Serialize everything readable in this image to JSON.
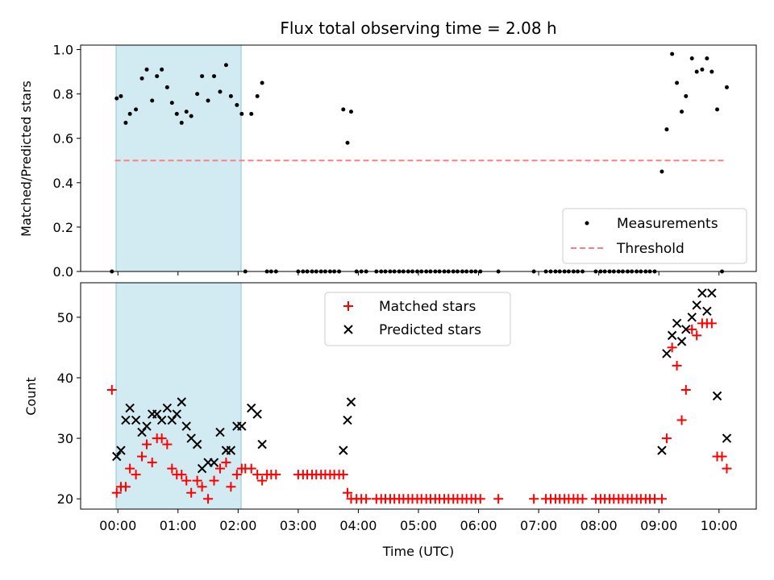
{
  "chart_data": [
    {
      "type": "scatter",
      "title": "Flux total observing time = 2.08 h",
      "ylabel": "Matched/Predicted stars",
      "xlabel": "",
      "xlim": [
        -0.62,
        10.62
      ],
      "ylim": [
        0,
        1.02
      ],
      "yticks": [
        0.0,
        0.2,
        0.4,
        0.6,
        0.8,
        1.0
      ],
      "ytick_labels": [
        "0.0",
        "0.2",
        "0.4",
        "0.6",
        "0.8",
        "1.0"
      ],
      "highlight_span": [
        -0.03,
        2.05
      ],
      "highlight_color": "#add8e6",
      "threshold": {
        "value": 0.5,
        "x_range": [
          -0.05,
          10.1
        ],
        "color": "#ff7f7f"
      },
      "legend": {
        "position": "lower-right",
        "entries": [
          "Measurements",
          "Threshold"
        ]
      },
      "series": [
        {
          "name": "Measurements",
          "color": "#000000",
          "x": [
            -0.1,
            -0.02,
            0.05,
            0.13,
            0.2,
            0.3,
            0.4,
            0.48,
            0.57,
            0.65,
            0.73,
            0.82,
            0.9,
            0.98,
            1.06,
            1.14,
            1.22,
            1.32,
            1.4,
            1.5,
            1.6,
            1.7,
            1.8,
            1.88,
            1.98,
            2.06,
            2.12,
            2.22,
            2.32,
            2.4,
            2.48,
            2.55,
            2.63,
            3.0,
            3.08,
            3.15,
            3.23,
            3.3,
            3.38,
            3.45,
            3.53,
            3.6,
            3.68,
            3.75,
            3.82,
            3.88,
            3.97,
            4.05,
            4.13,
            4.3,
            4.38,
            4.45,
            4.53,
            4.6,
            4.68,
            4.75,
            4.83,
            4.9,
            4.98,
            5.05,
            5.13,
            5.2,
            5.28,
            5.35,
            5.43,
            5.5,
            5.58,
            5.65,
            5.73,
            5.8,
            5.88,
            5.95,
            6.03,
            6.33,
            6.92,
            7.12,
            7.2,
            7.28,
            7.35,
            7.43,
            7.5,
            7.58,
            7.65,
            7.73,
            7.95,
            8.03,
            8.1,
            8.18,
            8.25,
            8.33,
            8.4,
            8.48,
            8.55,
            8.63,
            8.7,
            8.78,
            8.85,
            8.93,
            9.05,
            9.13,
            9.22,
            9.3,
            9.38,
            9.45,
            9.55,
            9.63,
            9.72,
            9.8,
            9.88,
            9.97,
            10.05,
            10.13
          ],
          "y": [
            0.0,
            0.78,
            0.79,
            0.67,
            0.71,
            0.73,
            0.87,
            0.91,
            0.77,
            0.88,
            0.91,
            0.83,
            0.76,
            0.71,
            0.67,
            0.72,
            0.7,
            0.8,
            0.88,
            0.77,
            0.88,
            0.81,
            0.93,
            0.79,
            0.75,
            0.71,
            0.0,
            0.71,
            0.79,
            0.85,
            0.0,
            0.0,
            0.0,
            0.0,
            0.0,
            0.0,
            0.0,
            0.0,
            0.0,
            0.0,
            0.0,
            0.0,
            0.0,
            0.73,
            0.58,
            0.72,
            0.0,
            0.0,
            0.0,
            0.0,
            0.0,
            0.0,
            0.0,
            0.0,
            0.0,
            0.0,
            0.0,
            0.0,
            0.0,
            0.0,
            0.0,
            0.0,
            0.0,
            0.0,
            0.0,
            0.0,
            0.0,
            0.0,
            0.0,
            0.0,
            0.0,
            0.0,
            0.0,
            0.0,
            0.0,
            0.0,
            0.0,
            0.0,
            0.0,
            0.0,
            0.0,
            0.0,
            0.0,
            0.0,
            0.0,
            0.0,
            0.0,
            0.0,
            0.0,
            0.0,
            0.0,
            0.0,
            0.0,
            0.0,
            0.0,
            0.0,
            0.0,
            0.0,
            0.45,
            0.64,
            0.98,
            0.85,
            0.72,
            0.79,
            0.96,
            0.9,
            0.91,
            0.96,
            0.9,
            0.73,
            0.0,
            0.83
          ]
        }
      ]
    },
    {
      "type": "scatter",
      "title": "",
      "ylabel": "Count",
      "xlabel": "Time (UTC)",
      "xlim": [
        -0.62,
        10.62
      ],
      "ylim": [
        18.3,
        55.7
      ],
      "yticks": [
        20,
        30,
        40,
        50
      ],
      "ytick_labels": [
        "20",
        "30",
        "40",
        "50"
      ],
      "xticks": [
        0,
        1,
        2,
        3,
        4,
        5,
        6,
        7,
        8,
        9,
        10
      ],
      "xtick_labels": [
        "00:00",
        "01:00",
        "02:00",
        "03:00",
        "04:00",
        "05:00",
        "06:00",
        "07:00",
        "08:00",
        "09:00",
        "10:00"
      ],
      "highlight_span": [
        -0.03,
        2.05
      ],
      "highlight_color": "#add8e6",
      "legend": {
        "position": "upper-center",
        "entries": [
          "Matched stars",
          "Predicted stars"
        ]
      },
      "series": [
        {
          "name": "Matched stars",
          "color": "#ff0000",
          "marker": "+",
          "x": [
            -0.1,
            -0.02,
            0.05,
            0.13,
            0.2,
            0.3,
            0.4,
            0.48,
            0.57,
            0.65,
            0.73,
            0.82,
            0.9,
            0.98,
            1.06,
            1.14,
            1.22,
            1.32,
            1.4,
            1.5,
            1.6,
            1.7,
            1.8,
            1.88,
            1.98,
            2.06,
            2.12,
            2.22,
            2.32,
            2.4,
            2.48,
            2.55,
            2.63,
            3.0,
            3.08,
            3.15,
            3.23,
            3.3,
            3.38,
            3.45,
            3.53,
            3.6,
            3.68,
            3.75,
            3.82,
            3.88,
            3.97,
            4.05,
            4.13,
            4.3,
            4.38,
            4.45,
            4.53,
            4.6,
            4.68,
            4.75,
            4.83,
            4.9,
            4.98,
            5.05,
            5.13,
            5.2,
            5.28,
            5.35,
            5.43,
            5.5,
            5.58,
            5.65,
            5.73,
            5.8,
            5.88,
            5.95,
            6.03,
            6.33,
            6.92,
            7.12,
            7.2,
            7.28,
            7.35,
            7.43,
            7.5,
            7.58,
            7.65,
            7.73,
            7.95,
            8.03,
            8.1,
            8.18,
            8.25,
            8.33,
            8.4,
            8.48,
            8.55,
            8.63,
            8.7,
            8.78,
            8.85,
            8.93,
            9.05,
            9.13,
            9.22,
            9.3,
            9.38,
            9.45,
            9.55,
            9.63,
            9.72,
            9.8,
            9.88,
            9.97,
            10.05,
            10.13
          ],
          "y": [
            38,
            21,
            22,
            22,
            25,
            24,
            27,
            29,
            26,
            30,
            30,
            29,
            25,
            24,
            24,
            23,
            21,
            23,
            22,
            20,
            23,
            25,
            26,
            22,
            24,
            25,
            25,
            25,
            24,
            23,
            24,
            24,
            24,
            24,
            24,
            24,
            24,
            24,
            24,
            24,
            24,
            24,
            24,
            24,
            21,
            20,
            20,
            20,
            20,
            20,
            20,
            20,
            20,
            20,
            20,
            20,
            20,
            20,
            20,
            20,
            20,
            20,
            20,
            20,
            20,
            20,
            20,
            20,
            20,
            20,
            20,
            20,
            20,
            20,
            20,
            20,
            20,
            20,
            20,
            20,
            20,
            20,
            20,
            20,
            20,
            20,
            20,
            20,
            20,
            20,
            20,
            20,
            20,
            20,
            20,
            20,
            20,
            20,
            20,
            30,
            45,
            42,
            33,
            38,
            48,
            47,
            49,
            49,
            49,
            27,
            27,
            25
          ]
        },
        {
          "name": "Predicted stars",
          "color": "#000000",
          "marker": "x",
          "x": [
            -0.02,
            0.05,
            0.13,
            0.2,
            0.3,
            0.4,
            0.48,
            0.57,
            0.65,
            0.73,
            0.82,
            0.9,
            0.98,
            1.06,
            1.14,
            1.22,
            1.32,
            1.4,
            1.5,
            1.6,
            1.7,
            1.8,
            1.88,
            1.98,
            2.06,
            2.22,
            2.32,
            2.4,
            3.75,
            3.82,
            3.88,
            9.05,
            9.13,
            9.22,
            9.3,
            9.38,
            9.45,
            9.55,
            9.63,
            9.72,
            9.8,
            9.88,
            9.97,
            10.13
          ],
          "y": [
            27,
            28,
            33,
            35,
            33,
            31,
            32,
            34,
            34,
            33,
            35,
            33,
            34,
            36,
            32,
            30,
            29,
            25,
            26,
            26,
            31,
            28,
            28,
            32,
            32,
            35,
            34,
            29,
            28,
            33,
            36,
            28,
            44,
            47,
            49,
            46,
            48,
            50,
            52,
            54,
            51,
            54,
            37,
            30
          ]
        }
      ]
    }
  ]
}
